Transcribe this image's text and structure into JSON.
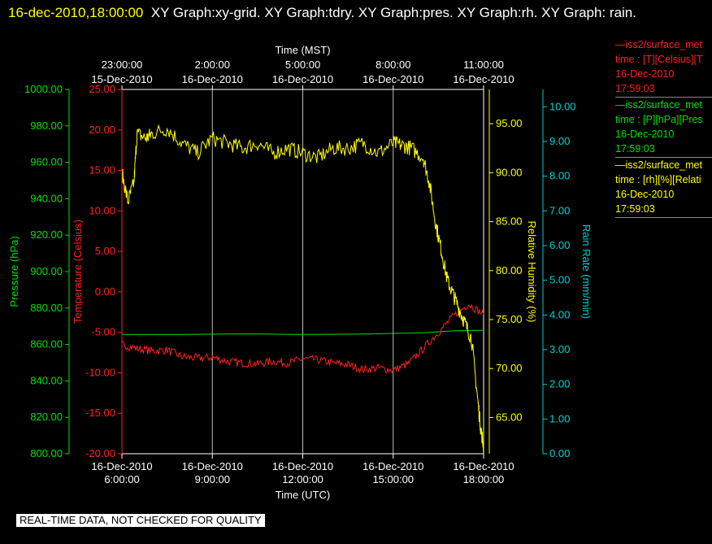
{
  "header": {
    "timestamp": "16-dec-2010,18:00:00",
    "titles": "XY Graph:xy-grid.  XY Graph:tdry.  XY Graph:pres.  XY Graph:rh.  XY Graph: rain."
  },
  "disclaimer": "REAL-TIME DATA, NOT CHECKED FOR QUALITY",
  "legend": [
    {
      "name": "—iss2/surface_met",
      "field": "time : [T][Celsius][T",
      "date": "16-Dec-2010",
      "time": "17:59:03",
      "color": "#ff2020"
    },
    {
      "name": "—iss2/surface_met",
      "field": "time : [P][hPa][Pres",
      "date": "16-Dec-2010",
      "time": "17:59:03",
      "color": "#00e000"
    },
    {
      "name": "—iss2/surface_met",
      "field": "time : [rh][%][Relati",
      "date": "16-Dec-2010",
      "time": "17:59:03",
      "color": "#ffff00"
    }
  ],
  "chart_data": {
    "type": "line",
    "top_axis": {
      "title": "Time (MST)",
      "ticks": [
        {
          "hour": 6,
          "line1": "23:00:00",
          "line2": "15-Dec-2010"
        },
        {
          "hour": 9,
          "line1": "2:00:00",
          "line2": "16-Dec-2010"
        },
        {
          "hour": 12,
          "line1": "5:00:00",
          "line2": "16-Dec-2010"
        },
        {
          "hour": 15,
          "line1": "8:00:00",
          "line2": "16-Dec-2010"
        },
        {
          "hour": 18,
          "line1": "11:00:00",
          "line2": "16-Dec-2010"
        }
      ]
    },
    "bottom_axis": {
      "title": "Time (UTC)",
      "range_hours_utc": [
        6,
        18
      ],
      "ticks": [
        {
          "hour": 6,
          "line1": "16-Dec-2010",
          "line2": "6:00:00"
        },
        {
          "hour": 9,
          "line1": "16-Dec-2010",
          "line2": "9:00:00"
        },
        {
          "hour": 12,
          "line1": "16-Dec-2010",
          "line2": "12:00:00"
        },
        {
          "hour": 15,
          "line1": "16-Dec-2010",
          "line2": "15:00:00"
        },
        {
          "hour": 18,
          "line1": "16-Dec-2010",
          "line2": "18:00:00"
        }
      ]
    },
    "y_axes": [
      {
        "id": "pressure",
        "title": "Pressure (hPa)",
        "color": "#00e000",
        "range": [
          800,
          1000
        ],
        "ticks": [
          "800.00",
          "820.00",
          "840.00",
          "860.00",
          "880.00",
          "900.00",
          "920.00",
          "940.00",
          "960.00",
          "980.00",
          "1000.00"
        ]
      },
      {
        "id": "temperature",
        "title": "Temperature (Celsius)",
        "color": "#ff2020",
        "range": [
          -20,
          25
        ],
        "ticks": [
          "-20.00",
          "-15.00",
          "-10.00",
          "-5.00",
          "0.00",
          "5.00",
          "10.00",
          "15.00",
          "20.00",
          "25.00"
        ]
      },
      {
        "id": "rh",
        "title": "Relative Humidity (%)",
        "color": "#ffff00",
        "range": [
          61.3,
          98.5
        ],
        "ticks": [
          "65.00",
          "70.00",
          "75.00",
          "80.00",
          "85.00",
          "90.00",
          "95.00"
        ]
      },
      {
        "id": "rain",
        "title": "Rain Rate (mm/min)",
        "color": "#00d0d0",
        "range": [
          0,
          10.5
        ],
        "ticks": [
          "0.00",
          "1.00",
          "2.00",
          "3.00",
          "4.00",
          "5.00",
          "6.00",
          "7.00",
          "8.00",
          "9.00",
          "10.00"
        ]
      }
    ],
    "grid": true,
    "series": [
      {
        "axis": "pressure",
        "color": "#00e000",
        "jitter": 0,
        "x": [
          6,
          8,
          10,
          12,
          14,
          16,
          17,
          18
        ],
        "y": [
          865.5,
          865.5,
          865.8,
          865.5,
          865.7,
          866.4,
          867.5,
          867.8
        ]
      },
      {
        "axis": "temperature",
        "color": "#ff2020",
        "jitter": 0.5,
        "x": [
          6,
          6.5,
          7,
          7.5,
          8,
          8.5,
          9,
          9.5,
          10,
          10.5,
          11,
          11.5,
          12,
          12.5,
          13,
          13.5,
          14,
          14.5,
          15,
          15.5,
          16,
          16.5,
          17,
          17.5,
          18
        ],
        "y": [
          -6.5,
          -7.0,
          -7.3,
          -7.2,
          -8.0,
          -8.2,
          -8.1,
          -8.6,
          -8.8,
          -8.9,
          -8.6,
          -8.8,
          -8.3,
          -8.4,
          -8.8,
          -9.0,
          -9.6,
          -9.4,
          -9.7,
          -8.9,
          -7.0,
          -5.0,
          -3.0,
          -1.5,
          -2.8
        ]
      },
      {
        "axis": "rh",
        "color": "#ffff00",
        "jitter": 0.8,
        "x": [
          6,
          6.2,
          6.4,
          6.5,
          6.8,
          7,
          7.5,
          8,
          8.5,
          9,
          9.5,
          10,
          10.5,
          11,
          11.5,
          12,
          12.5,
          13,
          13.5,
          14,
          14.5,
          15,
          15.3,
          15.6,
          16,
          16.2,
          16.4,
          16.6,
          16.8,
          17,
          17.2,
          17.4,
          17.6,
          17.8,
          17.9,
          18
        ],
        "y": [
          90,
          87,
          89,
          94,
          93.5,
          94,
          94.5,
          93,
          92,
          93.5,
          93,
          92.5,
          93,
          92,
          92.5,
          92,
          91.5,
          92.5,
          92.5,
          93,
          92,
          93,
          92.8,
          92.5,
          91.5,
          89,
          85,
          82,
          79,
          77.5,
          76,
          74.5,
          73,
          67,
          64,
          62
        ]
      }
    ]
  }
}
